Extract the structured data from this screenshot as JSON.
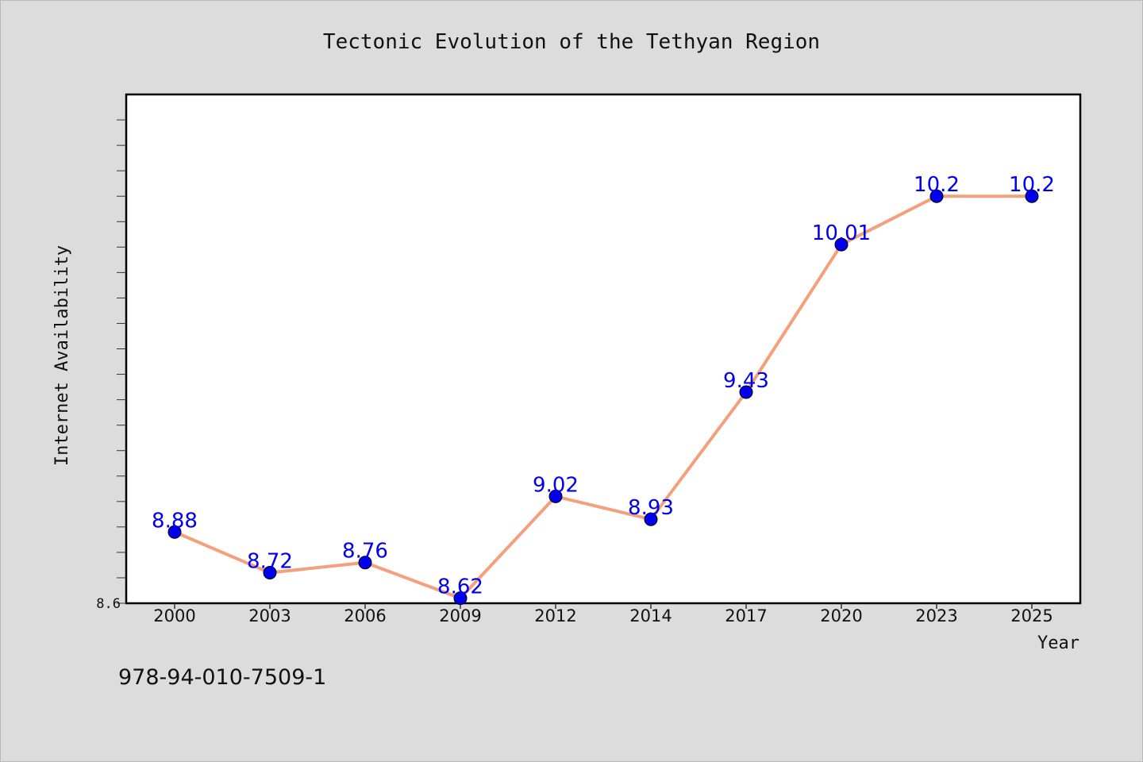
{
  "chart_data": {
    "type": "line",
    "title": "Tectonic Evolution of the Tethyan Region",
    "xlabel": "Year",
    "ylabel": "Internet Availability",
    "categories": [
      "2000",
      "2003",
      "2006",
      "2009",
      "2012",
      "2014",
      "2017",
      "2020",
      "2023",
      "2025"
    ],
    "series": [
      {
        "values": [
          8.88,
          8.72,
          8.76,
          8.62,
          9.02,
          8.93,
          9.43,
          10.01,
          10.2,
          10.2
        ],
        "data_labels": [
          "8.88",
          "8.72",
          "8.76",
          "8.62",
          "9.02",
          "8.93",
          "9.43",
          "10.01",
          "10.2",
          "10.2"
        ]
      }
    ],
    "ylim": [
      8.6,
      10.6
    ],
    "ytick_labels": [
      "8.6"
    ],
    "grid": false,
    "colors": {
      "line": "#f4a07c",
      "marker": "#0000ee",
      "data_label": "#0000ee",
      "plot_background": "#ffffff",
      "page_background": "#dcdcdc"
    }
  },
  "footer": {
    "isbn": "978-94-010-7509-1"
  }
}
